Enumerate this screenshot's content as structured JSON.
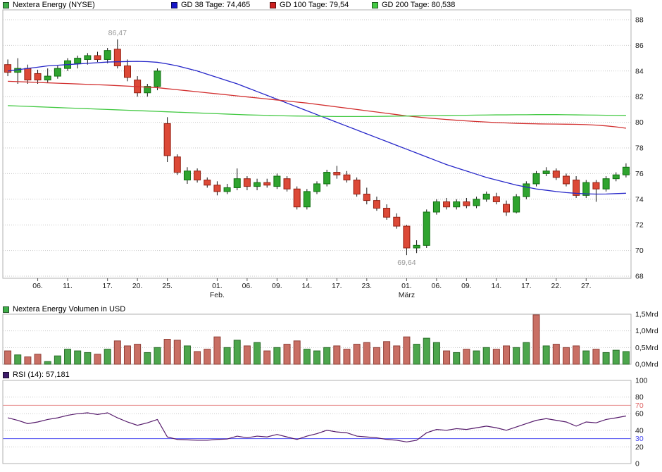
{
  "legend": {
    "main": [
      {
        "label": "Nextera Energy (NYSE)",
        "color": "#3fae49"
      },
      {
        "label": "GD 38 Tage: 74,465",
        "color": "#1414c8"
      },
      {
        "label": "GD 100 Tage: 79,54",
        "color": "#cc2020"
      },
      {
        "label": "GD 200 Tage: 80,538",
        "color": "#43c943"
      }
    ],
    "volume": {
      "label": "Nextera Energy Volumen in USD",
      "color": "#3fae49"
    },
    "rsi": {
      "label": "RSI (14): 57,181",
      "color": "#3f1d6b"
    }
  },
  "chart_data": [
    {
      "type": "candlestick",
      "title": "Nextera Energy (NYSE)",
      "ylim": [
        67.8,
        88.8
      ],
      "yticks": [
        68,
        70,
        72,
        74,
        76,
        78,
        80,
        82,
        84,
        86,
        88
      ],
      "grid": "horizontal-dotted",
      "up_color": "#2fa42f",
      "up_stroke": "#0e6e0e",
      "down_color": "#dc4937",
      "down_stroke": "#931f12",
      "wick_color": "#111111",
      "xticks": [
        {
          "i": 3,
          "label": "06."
        },
        {
          "i": 6,
          "label": "11."
        },
        {
          "i": 10,
          "label": "17."
        },
        {
          "i": 13,
          "label": "20."
        },
        {
          "i": 16,
          "label": "25."
        },
        {
          "i": 21,
          "label": "01."
        },
        {
          "i": 24,
          "label": "06."
        },
        {
          "i": 27,
          "label": "09."
        },
        {
          "i": 30,
          "label": "14."
        },
        {
          "i": 33,
          "label": "17."
        },
        {
          "i": 36,
          "label": "23."
        },
        {
          "i": 40,
          "label": "01."
        },
        {
          "i": 43,
          "label": "06."
        },
        {
          "i": 46,
          "label": "09."
        },
        {
          "i": 49,
          "label": "14."
        },
        {
          "i": 52,
          "label": "17."
        },
        {
          "i": 55,
          "label": "22."
        },
        {
          "i": 58,
          "label": "27."
        }
      ],
      "months": [
        {
          "i": 21,
          "label": "Feb."
        },
        {
          "i": 40,
          "label": "März"
        }
      ],
      "annotations": [
        {
          "index": 11,
          "value": 86.47,
          "label": "86,47",
          "position": "above"
        },
        {
          "index": 40,
          "value": 69.64,
          "label": "69,64",
          "position": "below"
        }
      ],
      "candles": [
        [
          84.5,
          84.9,
          83.6,
          83.9
        ],
        [
          83.9,
          85.0,
          83.0,
          84.2
        ],
        [
          84.2,
          84.5,
          83.0,
          83.3
        ],
        [
          83.8,
          84.1,
          83.0,
          83.3
        ],
        [
          83.3,
          84.2,
          83.1,
          83.6
        ],
        [
          83.6,
          84.4,
          83.4,
          84.2
        ],
        [
          84.2,
          85.0,
          84.0,
          84.8
        ],
        [
          84.6,
          85.2,
          84.2,
          85.0
        ],
        [
          84.9,
          85.4,
          84.5,
          85.2
        ],
        [
          85.2,
          85.5,
          84.7,
          84.9
        ],
        [
          84.9,
          85.8,
          84.6,
          85.6
        ],
        [
          85.7,
          86.47,
          84.2,
          84.4
        ],
        [
          84.4,
          84.9,
          83.2,
          83.5
        ],
        [
          83.3,
          83.6,
          82.0,
          82.3
        ],
        [
          82.3,
          83.0,
          82.0,
          82.8
        ],
        [
          82.8,
          84.2,
          82.5,
          84.0
        ],
        [
          79.9,
          80.4,
          76.9,
          77.4
        ],
        [
          77.3,
          77.5,
          75.9,
          76.1
        ],
        [
          75.5,
          76.5,
          75.2,
          76.2
        ],
        [
          76.2,
          76.4,
          75.3,
          75.5
        ],
        [
          75.5,
          75.7,
          74.9,
          75.1
        ],
        [
          75.1,
          75.4,
          74.3,
          74.6
        ],
        [
          74.6,
          75.2,
          74.4,
          74.9
        ],
        [
          74.9,
          76.4,
          74.7,
          75.6
        ],
        [
          75.6,
          75.8,
          74.7,
          75.0
        ],
        [
          75.0,
          75.6,
          74.7,
          75.3
        ],
        [
          75.3,
          75.6,
          74.9,
          75.1
        ],
        [
          75.0,
          76.0,
          74.8,
          75.8
        ],
        [
          75.6,
          75.8,
          74.6,
          74.8
        ],
        [
          74.8,
          75.0,
          73.2,
          73.4
        ],
        [
          73.4,
          74.8,
          73.2,
          74.6
        ],
        [
          74.6,
          75.4,
          74.4,
          75.2
        ],
        [
          75.2,
          76.3,
          75.0,
          76.1
        ],
        [
          76.1,
          76.6,
          75.6,
          75.9
        ],
        [
          75.9,
          76.2,
          75.3,
          75.5
        ],
        [
          75.5,
          75.7,
          74.2,
          74.4
        ],
        [
          74.4,
          74.9,
          73.6,
          73.9
        ],
        [
          73.9,
          74.2,
          73.1,
          73.3
        ],
        [
          73.3,
          73.6,
          72.4,
          72.6
        ],
        [
          72.6,
          72.9,
          71.7,
          71.9
        ],
        [
          71.9,
          72.0,
          69.64,
          70.2
        ],
        [
          70.2,
          70.8,
          69.8,
          70.4
        ],
        [
          70.4,
          73.2,
          70.2,
          73.0
        ],
        [
          73.0,
          74.0,
          72.8,
          73.8
        ],
        [
          73.8,
          74.1,
          73.2,
          73.4
        ],
        [
          73.4,
          74.0,
          73.2,
          73.8
        ],
        [
          73.8,
          74.1,
          73.3,
          73.5
        ],
        [
          73.5,
          74.2,
          73.3,
          74.0
        ],
        [
          74.0,
          74.6,
          73.8,
          74.4
        ],
        [
          74.2,
          74.5,
          73.6,
          73.8
        ],
        [
          73.6,
          73.9,
          72.7,
          73.0
        ],
        [
          73.0,
          74.4,
          72.9,
          74.2
        ],
        [
          74.2,
          75.4,
          74.0,
          75.2
        ],
        [
          75.2,
          76.2,
          75.0,
          76.0
        ],
        [
          76.0,
          76.5,
          75.8,
          76.2
        ],
        [
          76.2,
          76.4,
          75.5,
          75.7
        ],
        [
          75.8,
          76.0,
          75.0,
          75.2
        ],
        [
          75.5,
          75.8,
          74.1,
          74.3
        ],
        [
          74.3,
          75.5,
          74.1,
          75.3
        ],
        [
          75.3,
          75.5,
          73.8,
          74.8
        ],
        [
          74.8,
          75.8,
          74.6,
          75.6
        ],
        [
          75.6,
          76.1,
          75.4,
          75.9
        ],
        [
          75.9,
          76.8,
          75.7,
          76.5
        ]
      ],
      "series": [
        {
          "name": "gd38-line",
          "label": "GD 38 Tage",
          "color": "#2727c9",
          "values": [
            84.0,
            84.1,
            84.2,
            84.3,
            84.4,
            84.45,
            84.5,
            84.55,
            84.6,
            84.65,
            84.7,
            84.72,
            84.74,
            84.75,
            84.73,
            84.68,
            84.55,
            84.4,
            84.2,
            84.0,
            83.75,
            83.5,
            83.25,
            83.0,
            82.7,
            82.4,
            82.1,
            81.8,
            81.5,
            81.2,
            80.9,
            80.6,
            80.3,
            80.0,
            79.7,
            79.4,
            79.1,
            78.8,
            78.5,
            78.2,
            77.9,
            77.6,
            77.3,
            77.0,
            76.7,
            76.45,
            76.2,
            75.95,
            75.7,
            75.5,
            75.3,
            75.1,
            74.95,
            74.8,
            74.7,
            74.6,
            74.52,
            74.46,
            74.42,
            74.4,
            74.41,
            74.44,
            74.465
          ]
        },
        {
          "name": "gd100-line",
          "label": "GD 100 Tage",
          "color": "#d22f2f",
          "values": [
            83.2,
            83.17,
            83.14,
            83.11,
            83.08,
            83.05,
            83.02,
            82.99,
            82.96,
            82.93,
            82.9,
            82.86,
            82.82,
            82.78,
            82.74,
            82.7,
            82.62,
            82.54,
            82.46,
            82.38,
            82.3,
            82.22,
            82.14,
            82.06,
            81.98,
            81.9,
            81.82,
            81.74,
            81.66,
            81.58,
            81.5,
            81.4,
            81.3,
            81.2,
            81.1,
            81.0,
            80.9,
            80.8,
            80.7,
            80.6,
            80.5,
            80.42,
            80.34,
            80.28,
            80.22,
            80.16,
            80.11,
            80.06,
            80.02,
            79.98,
            79.95,
            79.92,
            79.9,
            79.88,
            79.87,
            79.86,
            79.85,
            79.84,
            79.82,
            79.78,
            79.72,
            79.64,
            79.54
          ]
        },
        {
          "name": "gd200-line",
          "label": "GD 200 Tage",
          "color": "#43c943",
          "values": [
            81.3,
            81.27,
            81.24,
            81.21,
            81.18,
            81.15,
            81.12,
            81.09,
            81.06,
            81.03,
            81.0,
            80.97,
            80.94,
            80.91,
            80.88,
            80.85,
            80.82,
            80.79,
            80.76,
            80.73,
            80.7,
            80.67,
            80.64,
            80.61,
            80.58,
            80.56,
            80.54,
            80.52,
            80.5,
            80.49,
            80.48,
            80.47,
            80.46,
            80.45,
            80.45,
            80.45,
            80.45,
            80.46,
            80.47,
            80.48,
            80.49,
            80.5,
            80.51,
            80.52,
            80.53,
            80.54,
            80.55,
            80.56,
            80.57,
            80.58,
            80.58,
            80.59,
            80.59,
            80.6,
            80.6,
            80.6,
            80.59,
            80.58,
            80.57,
            80.56,
            80.55,
            80.54,
            80.538
          ]
        }
      ]
    },
    {
      "type": "bar",
      "title": "Nextera Energy Volumen in USD",
      "ylabel": "Mrd USD",
      "ylim": [
        0,
        1.5
      ],
      "yticks": [
        {
          "v": 0,
          "label": "0,0Mrd"
        },
        {
          "v": 0.5,
          "label": "0,5Mrd"
        },
        {
          "v": 1.0,
          "label": "1,0Mrd"
        },
        {
          "v": 1.5,
          "label": "1,5Mrd"
        }
      ],
      "palette": {
        "g": {
          "fill": "#4ca64c",
          "stroke": "#2a6e2a"
        },
        "r": {
          "fill": "#c96f64",
          "stroke": "#8f4038"
        }
      },
      "values": [
        0.4,
        0.28,
        0.22,
        0.3,
        0.08,
        0.25,
        0.45,
        0.4,
        0.35,
        0.3,
        0.45,
        0.7,
        0.55,
        0.6,
        0.35,
        0.5,
        0.75,
        0.72,
        0.55,
        0.38,
        0.45,
        0.82,
        0.5,
        0.72,
        0.55,
        0.65,
        0.4,
        0.5,
        0.6,
        0.7,
        0.45,
        0.4,
        0.5,
        0.55,
        0.45,
        0.6,
        0.65,
        0.5,
        0.68,
        0.55,
        0.82,
        0.6,
        0.78,
        0.65,
        0.4,
        0.35,
        0.45,
        0.4,
        0.5,
        0.45,
        0.55,
        0.5,
        0.65,
        1.48,
        0.55,
        0.6,
        0.5,
        0.55,
        0.4,
        0.45,
        0.35,
        0.42,
        0.38
      ],
      "colors": [
        "r",
        "g",
        "r",
        "r",
        "g",
        "g",
        "g",
        "g",
        "g",
        "r",
        "g",
        "r",
        "r",
        "r",
        "g",
        "g",
        "r",
        "r",
        "g",
        "r",
        "r",
        "r",
        "g",
        "g",
        "r",
        "g",
        "r",
        "g",
        "r",
        "r",
        "g",
        "g",
        "g",
        "r",
        "r",
        "r",
        "r",
        "r",
        "r",
        "r",
        "r",
        "g",
        "g",
        "g",
        "r",
        "g",
        "r",
        "g",
        "g",
        "r",
        "r",
        "g",
        "g",
        "r",
        "g",
        "r",
        "r",
        "r",
        "g",
        "r",
        "g",
        "g",
        "g"
      ]
    },
    {
      "type": "line",
      "title": "RSI (14): 57,181",
      "current_value": 57.181,
      "ylim": [
        0,
        100
      ],
      "line_color": "#551a6b",
      "yticks": [
        {
          "v": 100,
          "label": "100"
        },
        {
          "v": 80,
          "label": "80"
        },
        {
          "v": 70,
          "label": "70",
          "color": "#e06666"
        },
        {
          "v": 60,
          "label": "60"
        },
        {
          "v": 40,
          "label": "40"
        },
        {
          "v": 30,
          "label": "30",
          "color": "#4444ee"
        },
        {
          "v": 20,
          "label": "20"
        },
        {
          "v": 0,
          "label": "0"
        }
      ],
      "gridlines": [
        20,
        40,
        60,
        80
      ],
      "hlines": [
        {
          "v": 70,
          "color": "#e89090"
        },
        {
          "v": 30,
          "color": "#5050f0"
        }
      ],
      "values": [
        55,
        52,
        48,
        50,
        53,
        55,
        58,
        60,
        61,
        59,
        61,
        55,
        50,
        46,
        49,
        53,
        32,
        29,
        28.5,
        28,
        28,
        29,
        29.5,
        33,
        31,
        33,
        32,
        35,
        32,
        29,
        33,
        36,
        40,
        38,
        37,
        33,
        32,
        31,
        29,
        28,
        26,
        28,
        37,
        41,
        40,
        42,
        41,
        43,
        45,
        43,
        40,
        44,
        48,
        52,
        54,
        52,
        50,
        45,
        50,
        49,
        53,
        55,
        57.181
      ]
    }
  ]
}
